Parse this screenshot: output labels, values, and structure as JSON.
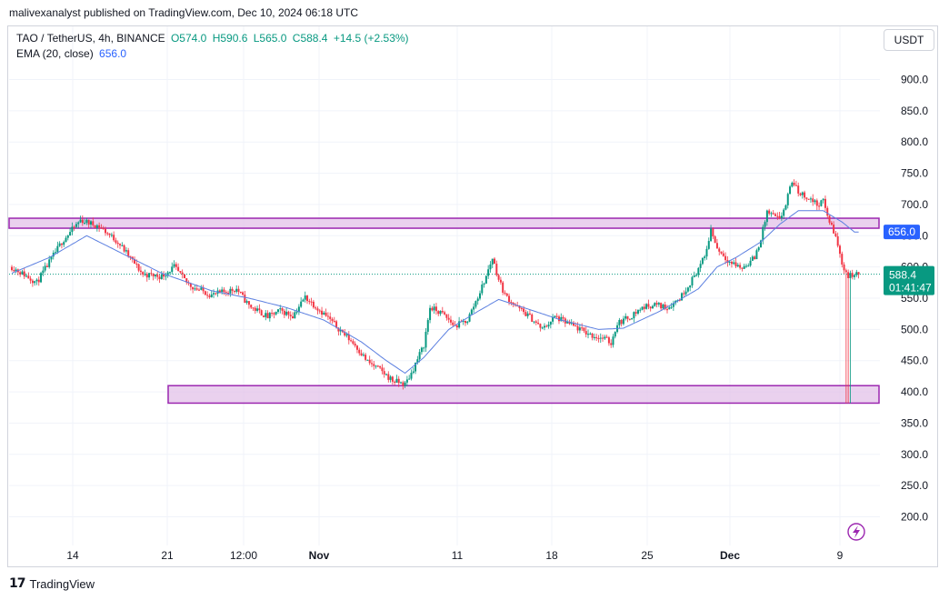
{
  "header": {
    "publish_line": "malivexanalyst published on TradingView.com, Dec 10, 2024 06:18 UTC"
  },
  "legend": {
    "symbol": "TAO / TetherUS, 4h, BINANCE",
    "open": "O574.0",
    "high": "H590.6",
    "low": "L565.0",
    "close": "C588.4",
    "change": "+14.5 (+2.53%)",
    "ema_label": "EMA (20, close)",
    "ema_value": "656.0"
  },
  "currency_button": "USDT",
  "branding": {
    "logo_text": "TradingView"
  },
  "colors": {
    "up": "#089981",
    "down": "#f23645",
    "ema": "#2962ff",
    "zone_fill": "#e1bee7",
    "zone_border": "#9c27b0"
  },
  "icons": {
    "flash": "lightning-icon",
    "logo": "tradingview-logo-icon"
  },
  "chart_data": {
    "type": "candlestick",
    "ylim": [
      150,
      950
    ],
    "y_ticks": [
      "900.0",
      "850.0",
      "800.0",
      "750.0",
      "700.0",
      "650.0",
      "600.0",
      "550.0",
      "500.0",
      "450.0",
      "400.0",
      "350.0",
      "300.0",
      "250.0",
      "200.0"
    ],
    "x_ticks": [
      "14",
      "21",
      "12:00",
      "Nov",
      "11",
      "18",
      "25",
      "Dec",
      "9"
    ],
    "last_price": {
      "value": 588.4,
      "label": "588.4",
      "countdown": "01:41:47"
    },
    "ema_marker": {
      "value": 656.0,
      "label": "656.0"
    },
    "zones": [
      {
        "name": "resistance",
        "low": 662,
        "high": 678
      },
      {
        "name": "support",
        "low": 382,
        "high": 410
      }
    ],
    "anchors": [
      [
        0,
        600
      ],
      [
        4,
        575
      ],
      [
        8,
        640
      ],
      [
        11,
        675
      ],
      [
        14,
        665
      ],
      [
        17,
        640
      ],
      [
        21,
        588
      ],
      [
        24,
        585
      ],
      [
        26,
        600
      ],
      [
        28,
        575
      ],
      [
        29,
        568
      ],
      [
        32,
        555
      ],
      [
        36,
        565
      ],
      [
        38,
        538
      ],
      [
        41,
        520
      ],
      [
        43,
        530
      ],
      [
        45,
        522
      ],
      [
        47,
        552
      ],
      [
        50,
        525
      ],
      [
        52,
        505
      ],
      [
        55,
        475
      ],
      [
        57,
        448
      ],
      [
        59,
        435
      ],
      [
        61,
        418
      ],
      [
        63,
        412
      ],
      [
        64,
        430
      ],
      [
        66,
        475
      ],
      [
        67,
        535
      ],
      [
        69,
        525
      ],
      [
        71,
        505
      ],
      [
        73,
        515
      ],
      [
        75,
        560
      ],
      [
        76,
        585
      ],
      [
        77,
        615
      ],
      [
        78,
        580
      ],
      [
        79,
        555
      ],
      [
        81,
        535
      ],
      [
        83,
        520
      ],
      [
        85,
        500
      ],
      [
        87,
        520
      ],
      [
        89,
        510
      ],
      [
        91,
        500
      ],
      [
        93,
        490
      ],
      [
        95,
        485
      ],
      [
        96,
        478
      ],
      [
        97,
        510
      ],
      [
        99,
        520
      ],
      [
        101,
        535
      ],
      [
        103,
        540
      ],
      [
        105,
        535
      ],
      [
        107,
        550
      ],
      [
        109,
        580
      ],
      [
        111,
        615
      ],
      [
        112,
        660
      ],
      [
        113,
        630
      ],
      [
        115,
        608
      ],
      [
        117,
        598
      ],
      [
        119,
        615
      ],
      [
        120,
        645
      ],
      [
        121,
        688
      ],
      [
        123,
        675
      ],
      [
        124,
        700
      ],
      [
        125,
        738
      ],
      [
        126,
        720
      ],
      [
        128,
        708
      ],
      [
        129,
        700
      ],
      [
        130,
        705
      ],
      [
        131,
        672
      ],
      [
        132,
        648
      ],
      [
        133,
        605
      ],
      [
        134,
        585
      ],
      [
        135,
        588
      ]
    ],
    "ema_series": [
      [
        0,
        590
      ],
      [
        6,
        615
      ],
      [
        12,
        650
      ],
      [
        18,
        620
      ],
      [
        24,
        590
      ],
      [
        32,
        562
      ],
      [
        38,
        550
      ],
      [
        44,
        535
      ],
      [
        50,
        515
      ],
      [
        56,
        480
      ],
      [
        60,
        450
      ],
      [
        63,
        430
      ],
      [
        66,
        455
      ],
      [
        70,
        500
      ],
      [
        74,
        525
      ],
      [
        78,
        548
      ],
      [
        82,
        535
      ],
      [
        88,
        515
      ],
      [
        94,
        500
      ],
      [
        98,
        502
      ],
      [
        104,
        530
      ],
      [
        110,
        565
      ],
      [
        113,
        600
      ],
      [
        116,
        615
      ],
      [
        120,
        640
      ],
      [
        123,
        668
      ],
      [
        126,
        690
      ],
      [
        130,
        690
      ],
      [
        133,
        672
      ],
      [
        135,
        656
      ]
    ],
    "spike_low": {
      "index": 134,
      "value": 382
    }
  }
}
